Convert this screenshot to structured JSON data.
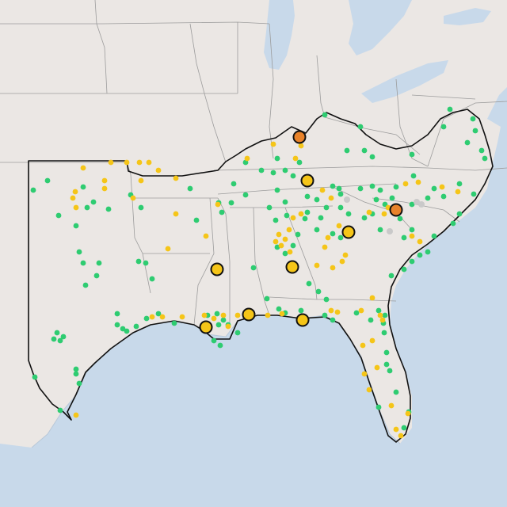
{
  "map": {
    "colors": {
      "land": "#ebe7e4",
      "water": "#c8d9ea",
      "state_borders": "#9c9c9c",
      "region_outline": "#111111",
      "green": "#2ecc71",
      "yellow": "#f5c518",
      "orange": "#e8822a",
      "gray": "#c9c9c9"
    },
    "marker_categories": [
      {
        "name": "small-green-dot",
        "color": "green",
        "count": 160
      },
      {
        "name": "small-yellow-dot",
        "color": "yellow",
        "count": 75
      },
      {
        "name": "small-gray-dot",
        "color": "gray",
        "count": 4
      },
      {
        "name": "large-yellow-circle",
        "color": "yellow",
        "count": 8
      },
      {
        "name": "large-orange-circle",
        "color": "orange",
        "count": 2
      }
    ]
  }
}
